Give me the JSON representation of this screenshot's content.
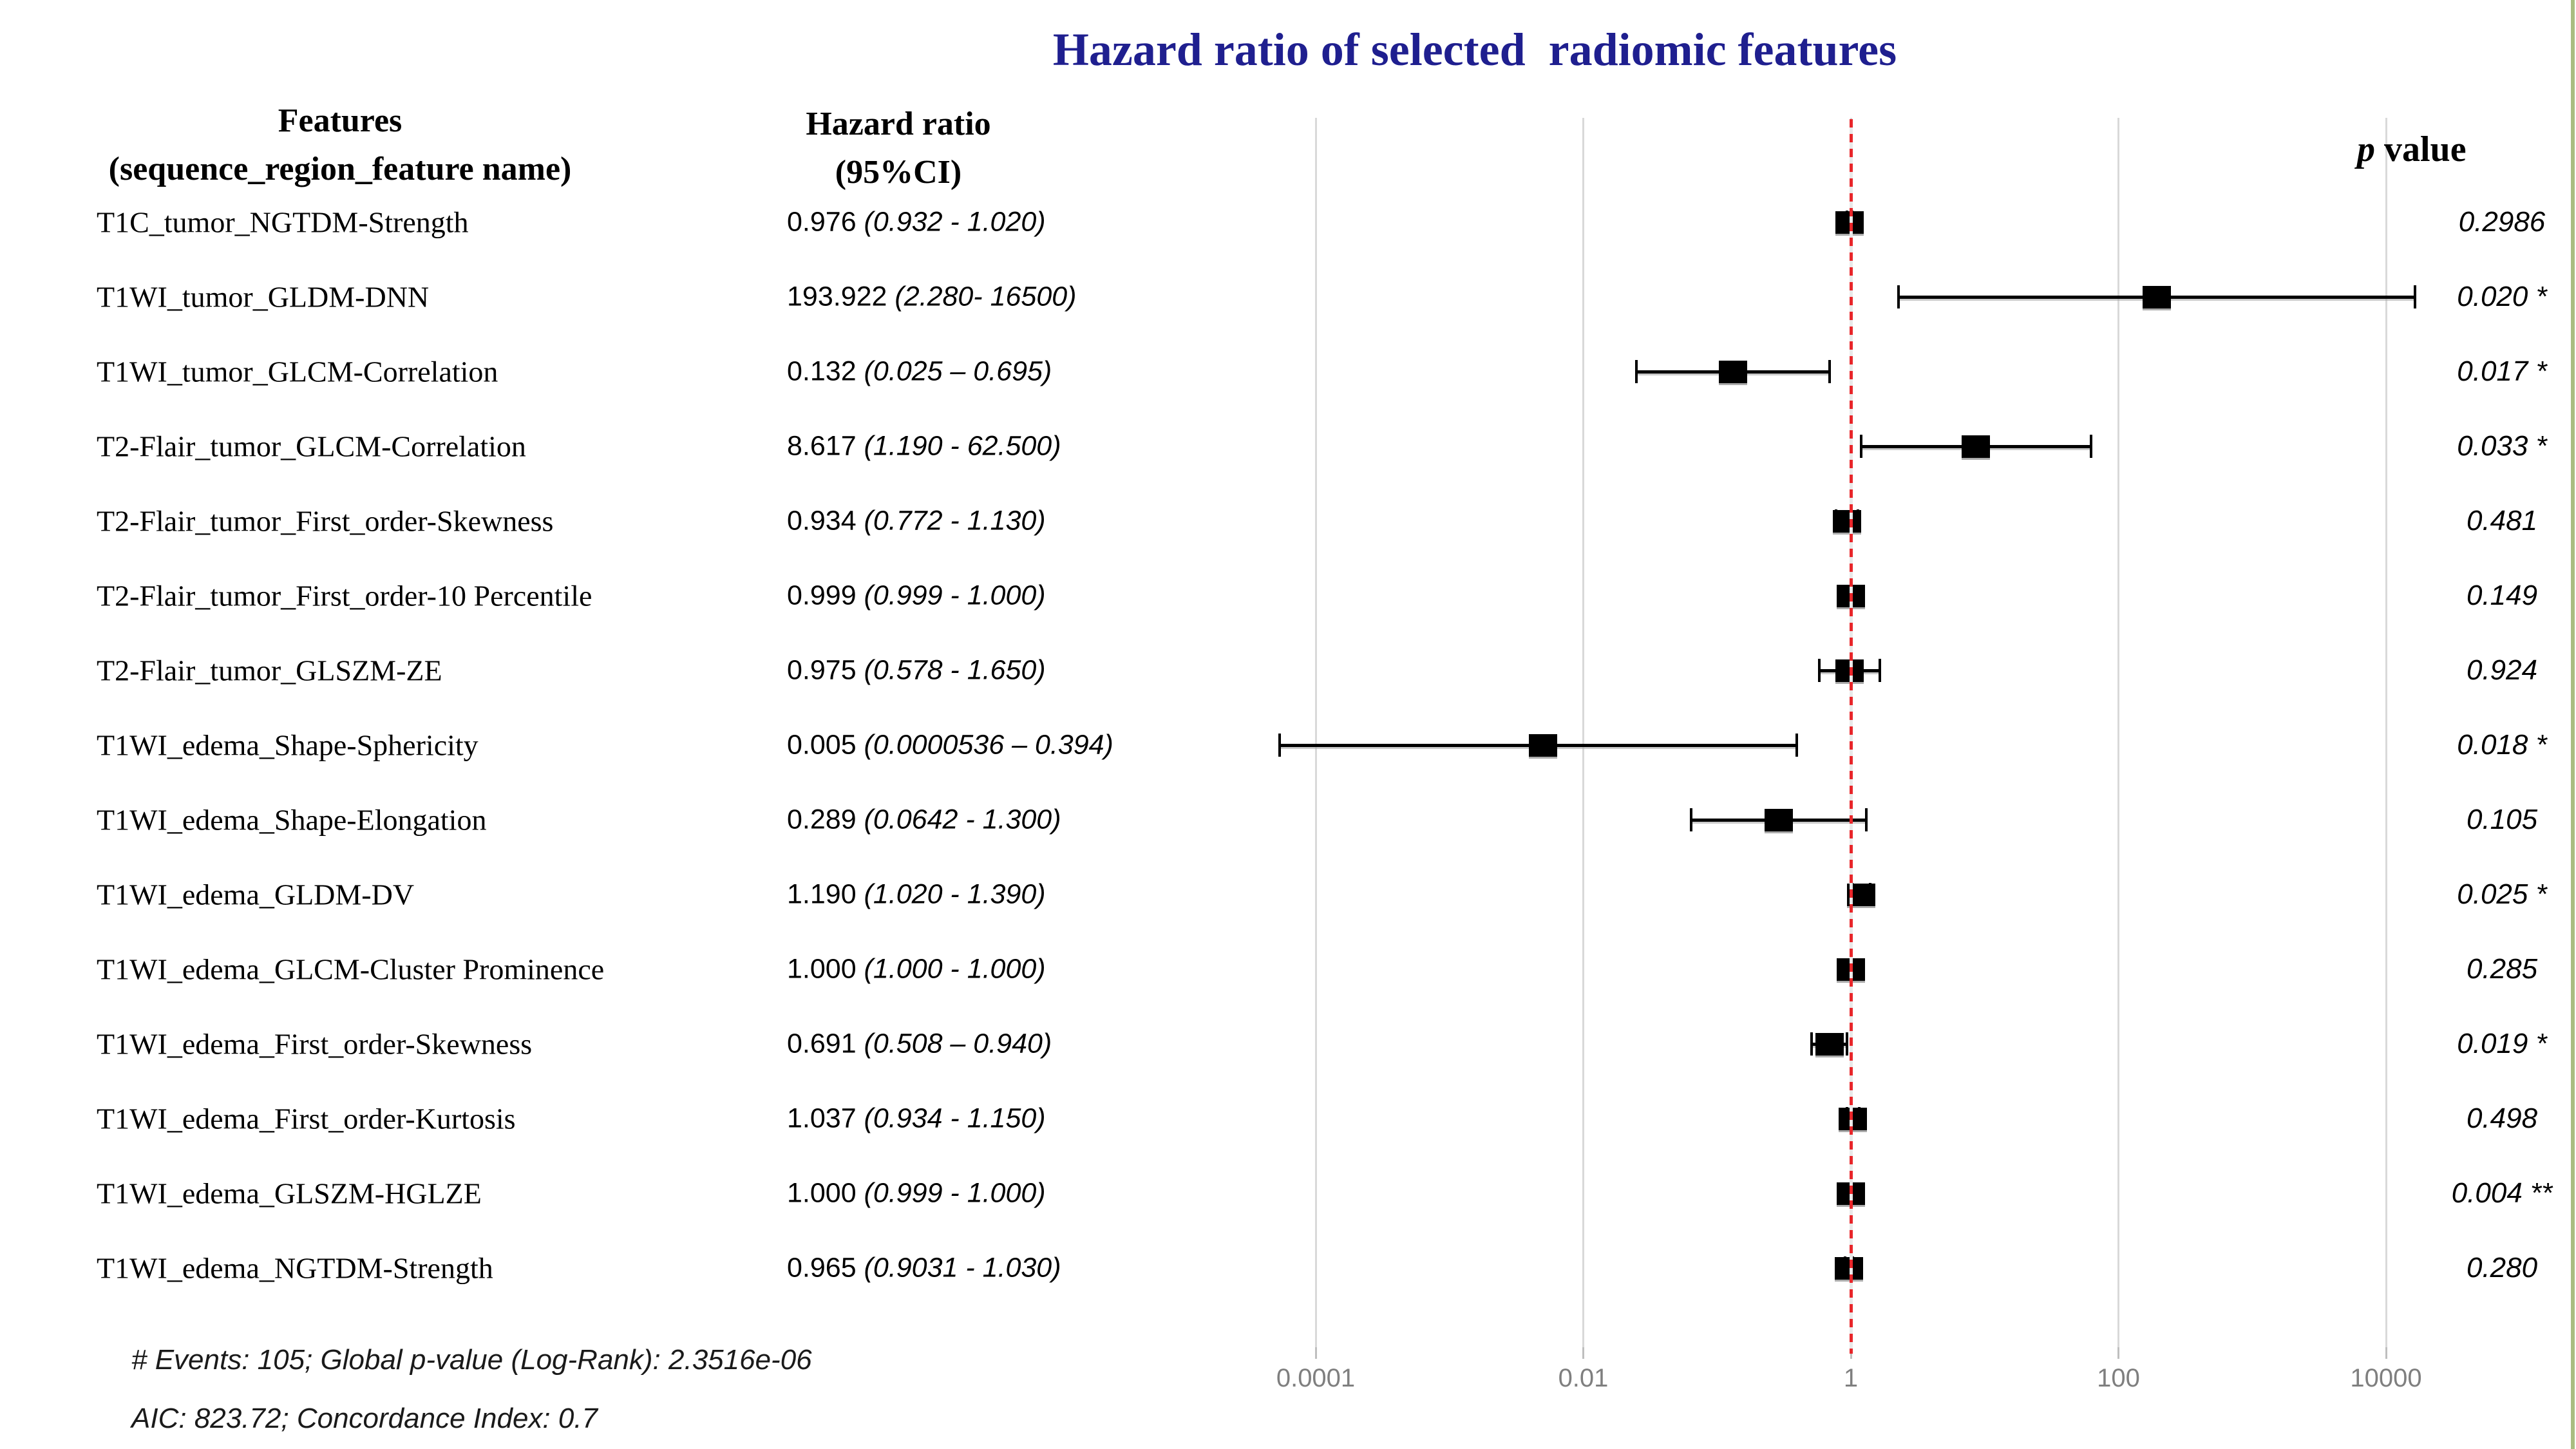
{
  "title": {
    "text": "Hazard ratio of selected  radiomic features"
  },
  "header": {
    "features_line1": "Features",
    "features_line2": "(sequence_region_feature name)",
    "hazard_line1": "Hazard ratio",
    "hazard_line2": "(95%CI)",
    "p_symbol": "p",
    "p_rest": " value"
  },
  "footer": {
    "line1": "# Events: 105; Global p-value (Log-Rank): 2.3516e-06",
    "line2": "AIC: 823.72; Concordance Index: 0.7"
  },
  "colors": {
    "title_text": "#1f1f8f",
    "reference_line_red": "#e8262a",
    "gridline": "#d9d9d9",
    "axis_label": "#7f7f7f",
    "marker": "#000000",
    "right_edge_strip": "#a9bd81"
  },
  "chart_data": {
    "type": "forest-plot-scatter",
    "title": "Hazard ratio of selected  radiomic features",
    "x_axis": {
      "scale": "log10",
      "range": [
        0.0001,
        10000
      ],
      "ticks": [
        0.0001,
        0.01,
        1,
        100,
        10000
      ],
      "tick_labels": [
        "0.0001",
        "0.01",
        "1",
        "100",
        "10000"
      ],
      "reference_value": 1,
      "grid": true
    },
    "legend": "none",
    "rows": [
      {
        "feature": "T1C_tumor_NGTDM-Strength",
        "hr": 0.976,
        "ci_low": 0.932,
        "ci_high": 1.02,
        "hr_label": "0.976",
        "ci_label": "(0.932 - 1.020)",
        "p_label": "0.2986"
      },
      {
        "feature": "T1WI_tumor_GLDM-DNN",
        "hr": 193.922,
        "ci_low": 2.28,
        "ci_high": 16500,
        "hr_label": "193.922",
        "ci_label": "(2.280- 16500)",
        "p_label": "0.020 *"
      },
      {
        "feature": "T1WI_tumor_GLCM-Correlation",
        "hr": 0.132,
        "ci_low": 0.025,
        "ci_high": 0.695,
        "hr_label": "0.132",
        "ci_label": "(0.025 – 0.695)",
        "p_label": "0.017 *"
      },
      {
        "feature": "T2-Flair_tumor_GLCM-Correlation",
        "hr": 8.617,
        "ci_low": 1.19,
        "ci_high": 62.5,
        "hr_label": "8.617",
        "ci_label": "(1.190 - 62.500)",
        "p_label": "0.033 *"
      },
      {
        "feature": "T2-Flair_tumor_First_order-Skewness",
        "hr": 0.934,
        "ci_low": 0.772,
        "ci_high": 1.13,
        "hr_label": "0.934",
        "ci_label": "(0.772 - 1.130)",
        "p_label": "0.481"
      },
      {
        "feature": "T2-Flair_tumor_First_order-10 Percentile",
        "hr": 0.999,
        "ci_low": 0.999,
        "ci_high": 1.0,
        "hr_label": "0.999",
        "ci_label": "(0.999 - 1.000)",
        "p_label": "0.149"
      },
      {
        "feature": "T2-Flair_tumor_GLSZM-ZE",
        "hr": 0.975,
        "ci_low": 0.578,
        "ci_high": 1.65,
        "hr_label": "0.975",
        "ci_label": "(0.578 - 1.650)",
        "p_label": "0.924"
      },
      {
        "feature": "T1WI_edema_Shape-Sphericity",
        "hr": 0.005,
        "ci_low": 5.36e-05,
        "ci_high": 0.394,
        "hr_label": "0.005",
        "ci_label": "(0.0000536 – 0.394)",
        "p_label": "0.018 *"
      },
      {
        "feature": "T1WI_edema_Shape-Elongation",
        "hr": 0.289,
        "ci_low": 0.0642,
        "ci_high": 1.3,
        "hr_label": "0.289",
        "ci_label": "(0.0642 - 1.300)",
        "p_label": "0.105"
      },
      {
        "feature": "T1WI_edema_GLDM-DV",
        "hr": 1.19,
        "ci_low": 1.02,
        "ci_high": 1.39,
        "hr_label": "1.190",
        "ci_label": "(1.020 - 1.390)",
        "p_label": "0.025 *"
      },
      {
        "feature": "T1WI_edema_GLCM-Cluster Prominence",
        "hr": 1.0,
        "ci_low": 1.0,
        "ci_high": 1.0,
        "hr_label": "1.000",
        "ci_label": "(1.000 - 1.000)",
        "p_label": "0.285"
      },
      {
        "feature": "T1WI_edema_First_order-Skewness",
        "hr": 0.691,
        "ci_low": 0.508,
        "ci_high": 0.94,
        "hr_label": "0.691",
        "ci_label": "(0.508 – 0.940)",
        "p_label": "0.019 *"
      },
      {
        "feature": "T1WI_edema_First_order-Kurtosis",
        "hr": 1.037,
        "ci_low": 0.934,
        "ci_high": 1.15,
        "hr_label": "1.037",
        "ci_label": "(0.934 - 1.150)",
        "p_label": "0.498"
      },
      {
        "feature": "T1WI_edema_GLSZM-HGLZE",
        "hr": 1.0,
        "ci_low": 0.999,
        "ci_high": 1.0,
        "hr_label": "1.000",
        "ci_label": "(0.999 - 1.000)",
        "p_label": "0.004 **"
      },
      {
        "feature": "T1WI_edema_NGTDM-Strength",
        "hr": 0.965,
        "ci_low": 0.9031,
        "ci_high": 1.03,
        "hr_label": "0.965",
        "ci_label": "(0.9031 - 1.030)",
        "p_label": "0.280"
      }
    ]
  }
}
